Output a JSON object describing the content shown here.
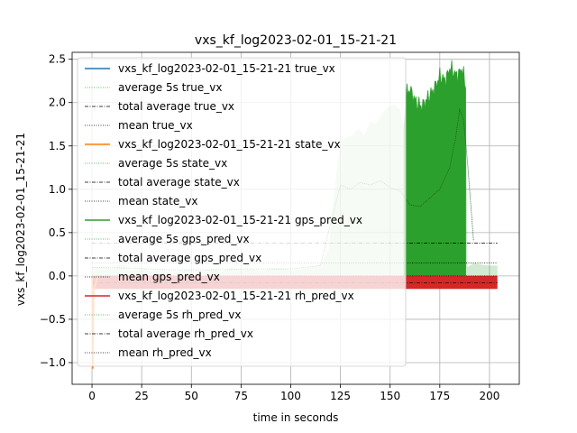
{
  "chart_data": {
    "type": "line",
    "title": "vxs_kf_log2023-02-01_15-21-21",
    "xlabel": "time in seconds",
    "ylabel": "vxs_kf_log2023-02-01_15-21-21",
    "xlim": [
      -10,
      215
    ],
    "ylim": [
      -1.25,
      2.58
    ],
    "xticks": [
      0,
      25,
      50,
      75,
      100,
      125,
      150,
      175,
      200
    ],
    "yticks": [
      -1.0,
      -0.5,
      0.0,
      0.5,
      1.0,
      1.5,
      2.0,
      2.5
    ],
    "xtick_labels": [
      "0",
      "25",
      "50",
      "75",
      "100",
      "125",
      "150",
      "175",
      "200"
    ],
    "ytick_labels": [
      "−1.0",
      "−0.5",
      "0.0",
      "0.5",
      "1.0",
      "1.5",
      "2.0",
      "2.5"
    ],
    "grid": true,
    "legend_position": "upper-left",
    "legend": [
      {
        "label": "vxs_kf_log2023-02-01_15-21-21 true_vx",
        "color": "#1f77b4",
        "style": "solid"
      },
      {
        "label": "average 5s true_vx",
        "color": "#2ca02c",
        "style": "dotted"
      },
      {
        "label": "total average true_vx",
        "color": "#000000",
        "style": "dashdot"
      },
      {
        "label": "mean true_vx",
        "color": "#000000",
        "style": "dotted"
      },
      {
        "label": "vxs_kf_log2023-02-01_15-21-21 state_vx",
        "color": "#ff7f0e",
        "style": "solid"
      },
      {
        "label": "average 5s state_vx",
        "color": "#2ca02c",
        "style": "dotted"
      },
      {
        "label": "total average state_vx",
        "color": "#000000",
        "style": "dashdot"
      },
      {
        "label": "mean state_vx",
        "color": "#000000",
        "style": "dotted"
      },
      {
        "label": "vxs_kf_log2023-02-01_15-21-21 gps_pred_vx",
        "color": "#2ca02c",
        "style": "solid"
      },
      {
        "label": "average 5s gps_pred_vx",
        "color": "#2ca02c",
        "style": "dotted"
      },
      {
        "label": "total average gps_pred_vx",
        "color": "#000000",
        "style": "dashdot"
      },
      {
        "label": "mean gps_pred_vx",
        "color": "#000000",
        "style": "dotted"
      },
      {
        "label": "vxs_kf_log2023-02-01_15-21-21 rh_pred_vx",
        "color": "#d62728",
        "style": "solid"
      },
      {
        "label": "average 5s rh_pred_vx",
        "color": "#2ca02c",
        "style": "dotted"
      },
      {
        "label": "total average rh_pred_vx",
        "color": "#000000",
        "style": "dashdot"
      },
      {
        "label": "mean rh_pred_vx",
        "color": "#000000",
        "style": "dotted"
      }
    ],
    "series": [
      {
        "name": "vxs_kf_log2023-02-01_15-21-21 gps_pred_vx",
        "color": "#2ca02c",
        "x": [
          0,
          5,
          10,
          15,
          20,
          25,
          30,
          35,
          40,
          45,
          50,
          55,
          60,
          65,
          70,
          75,
          80,
          85,
          90,
          95,
          100,
          105,
          110,
          115,
          119,
          122,
          125,
          128,
          131,
          134,
          137,
          140,
          143,
          146,
          149,
          152,
          155,
          157,
          158,
          160,
          163,
          166,
          169,
          172,
          175,
          178,
          180,
          182,
          184,
          186,
          188,
          189,
          192,
          196,
          200,
          204
        ],
        "y": [
          0.1,
          0.12,
          0.08,
          0.15,
          0.06,
          0.1,
          0.05,
          0.08,
          0.03,
          0.06,
          0.07,
          0.05,
          0.09,
          0.04,
          0.1,
          0.06,
          0.08,
          0.05,
          0.09,
          0.1,
          0.06,
          0.08,
          0.1,
          0.12,
          0.3,
          1.0,
          1.55,
          1.6,
          1.62,
          1.7,
          1.62,
          1.78,
          1.75,
          1.88,
          1.95,
          1.98,
          1.92,
          1.7,
          2.1,
          2.15,
          2.0,
          1.95,
          2.05,
          2.15,
          2.3,
          2.25,
          2.4,
          2.35,
          2.3,
          2.4,
          2.2,
          0.1,
          0.15,
          0.13,
          0.12,
          0.12
        ]
      },
      {
        "name": "average 5s gps_pred_vx",
        "color": "#2ca02c",
        "x": [
          0,
          20,
          40,
          60,
          80,
          100,
          115,
          120,
          125,
          130,
          135,
          140,
          145,
          150,
          155,
          160,
          165,
          170,
          175,
          180,
          183,
          185,
          187,
          189,
          192
        ],
        "y": [
          0.1,
          0.09,
          0.07,
          0.07,
          0.08,
          0.08,
          0.12,
          0.6,
          1.05,
          1.0,
          1.08,
          1.05,
          1.1,
          1.02,
          0.98,
          0.82,
          0.8,
          0.9,
          1.0,
          1.25,
          1.6,
          1.92,
          1.8,
          1.3,
          0.4
        ]
      },
      {
        "name": "vxs_kf_log2023-02-01_15-21-21 state_vx",
        "color": "#ff7f0e",
        "x": [
          0,
          0.2,
          0.4,
          0.6,
          1.0,
          3.0
        ],
        "y": [
          0.0,
          -0.3,
          -1.07,
          -0.6,
          -0.15,
          0.0
        ]
      },
      {
        "name": "vxs_kf_log2023-02-01_15-21-21 rh_pred_vx",
        "color": "#d62728",
        "x": [
          0,
          204
        ],
        "y": [
          -0.07,
          -0.07
        ],
        "band": [
          -0.15,
          0.0
        ]
      }
    ],
    "reference_lines": [
      {
        "label": "total average gps_pred_vx",
        "y": 0.38,
        "x": [
          0,
          204
        ],
        "style": "dashdot"
      },
      {
        "label": "mean gps_pred_vx",
        "y": 0.15,
        "x": [
          0,
          204
        ],
        "style": "dotted"
      },
      {
        "label": "mean true_vx",
        "y": 0.0,
        "x": [
          0,
          204
        ],
        "style": "dotted"
      },
      {
        "label": "total average rh_pred_vx",
        "y": -0.08,
        "x": [
          0,
          204
        ],
        "style": "dashdot"
      }
    ]
  }
}
